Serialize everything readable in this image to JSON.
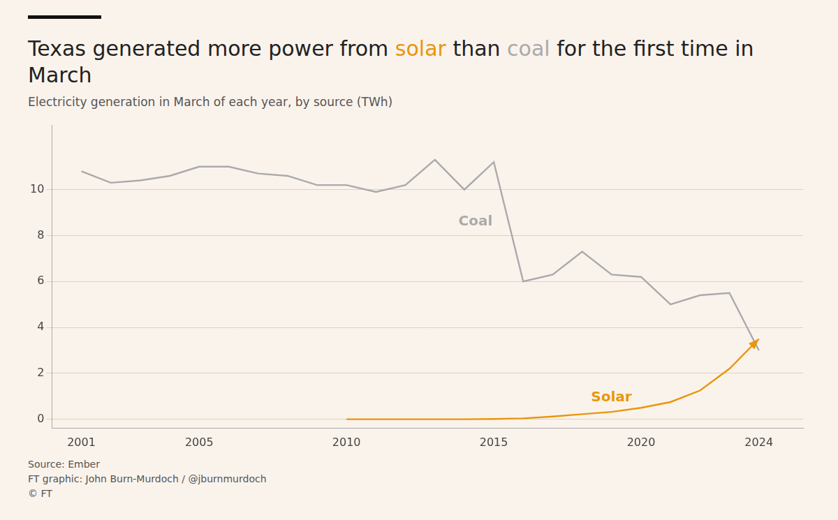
{
  "chart_data": {
    "type": "line",
    "title": "Texas generated more power from solar than coal for the first time in March",
    "subtitle": "Electricity generation in March of each year, by source (TWh)",
    "footnote": "Source: Ember\nFT graphic: John Burn-Murdoch / @jburnmurdoch\n© FT",
    "series": [
      {
        "name": "Coal",
        "color": "#aaaaaa",
        "x": [
          2001,
          2002,
          2003,
          2004,
          2005,
          2006,
          2007,
          2008,
          2009,
          2010,
          2011,
          2012,
          2013,
          2014,
          2015,
          2016,
          2017,
          2018,
          2019,
          2020,
          2021,
          2022,
          2023,
          2024
        ],
        "values": [
          10.8,
          10.3,
          10.4,
          10.6,
          11.0,
          11.0,
          10.7,
          10.6,
          10.2,
          10.2,
          9.9,
          10.2,
          11.3,
          10.0,
          11.2,
          6.0,
          6.3,
          7.3,
          6.3,
          6.2,
          5.0,
          5.4,
          5.5,
          3.0
        ]
      },
      {
        "name": "Solar",
        "color": "#e8960c",
        "marker": "arrow",
        "x": [
          2010,
          2011,
          2012,
          2013,
          2014,
          2015,
          2016,
          2017,
          2018,
          2019,
          2020,
          2021,
          2022,
          2023,
          2024
        ],
        "values": [
          0.0,
          0.0,
          0.0,
          0.0,
          0.0,
          0.01,
          0.04,
          0.12,
          0.22,
          0.32,
          0.5,
          0.75,
          1.25,
          2.2,
          3.5
        ]
      }
    ],
    "annotations": [
      {
        "text": "Coal",
        "x": 2013.8,
        "y": 8.9,
        "color": "#aaaaaa"
      },
      {
        "text": "Solar",
        "x": 2018.3,
        "y": 0.62,
        "color": "#e8960c"
      }
    ],
    "xlim": [
      2000.0,
      2025.5
    ],
    "ylim": [
      -0.4,
      12.8
    ],
    "xticks": [
      2001,
      2005,
      2010,
      2015,
      2020,
      2024
    ],
    "yticks": [
      0,
      2,
      4,
      6,
      8,
      10
    ],
    "grid": "y"
  }
}
